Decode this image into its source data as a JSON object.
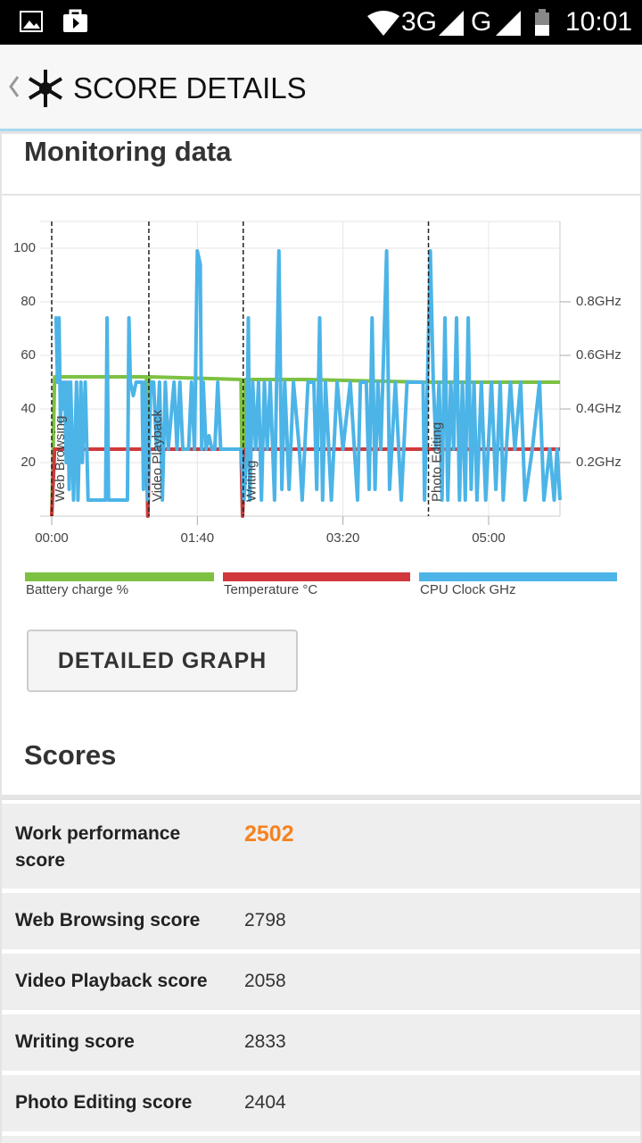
{
  "status_bar": {
    "network": "3G",
    "network2": "G",
    "time": "10:01"
  },
  "app_bar": {
    "title": "SCORE DETAILS"
  },
  "monitoring": {
    "heading": "Monitoring data",
    "button": "DETAILED GRAPH"
  },
  "chart_data": {
    "type": "line",
    "xlim": [
      0,
      349
    ],
    "xticks": [
      {
        "value": 0,
        "label": "00:00"
      },
      {
        "value": 100,
        "label": "01:40"
      },
      {
        "value": 200,
        "label": "03:20"
      },
      {
        "value": 300,
        "label": "05:00"
      }
    ],
    "ylim": [
      0,
      110
    ],
    "yticks": [
      20,
      40,
      60,
      80,
      100
    ],
    "y2lim": [
      0,
      1.1
    ],
    "y2ticks": [
      {
        "value": 0.2,
        "label": "0.2GHz"
      },
      {
        "value": 0.4,
        "label": "0.4GHz"
      },
      {
        "value": 0.6,
        "label": "0.6GHz"
      },
      {
        "value": 0.8,
        "label": "0.8GHz"
      }
    ],
    "grid": true,
    "annotations": [
      {
        "x": 0,
        "label": "Web Browsing"
      },
      {
        "x": 66.7,
        "label": "Video Playback"
      },
      {
        "x": 131.5,
        "label": "Writing"
      },
      {
        "x": 258.7,
        "label": "Photo Editing"
      }
    ],
    "series": [
      {
        "name": "Battery charge %",
        "color": "#7dc142",
        "axis": "y",
        "x": [
          0,
          2,
          65,
          66,
          67,
          130,
          131,
          133,
          175,
          258,
          349
        ],
        "values": [
          0,
          52,
          52,
          0,
          52,
          51,
          0,
          51,
          51,
          50,
          50
        ]
      },
      {
        "name": "Temperature °C",
        "color": "#d0393b",
        "axis": "y",
        "x": [
          0,
          2,
          65,
          66,
          67,
          130,
          131,
          133,
          349
        ],
        "values": [
          0,
          25,
          25,
          0,
          25,
          25,
          0,
          25,
          25
        ]
      },
      {
        "name": "CPU Clock GHz",
        "color": "#4cb4e7",
        "axis": "y2",
        "x": [
          2,
          3,
          4,
          5,
          6,
          7,
          8,
          9,
          10,
          11,
          12,
          13,
          15,
          17,
          18,
          20,
          21,
          23,
          25,
          37,
          38,
          39,
          52,
          53,
          54,
          56,
          58,
          62,
          63,
          64,
          66,
          68,
          70,
          72,
          74,
          76,
          78,
          80,
          84,
          86,
          88,
          90,
          94,
          96,
          98,
          100,
          102,
          103,
          104,
          106,
          108,
          110,
          112,
          114,
          116,
          130,
          132,
          134,
          135,
          136,
          138,
          140,
          142,
          144,
          146,
          148,
          150,
          153,
          156,
          158,
          160,
          163,
          166,
          170,
          172,
          176,
          180,
          182,
          184,
          186,
          188,
          192,
          196,
          200,
          205,
          210,
          212,
          216,
          218,
          220,
          222,
          224,
          226,
          230,
          232,
          236,
          240,
          244,
          255,
          256,
          258,
          260,
          262,
          264,
          266,
          268,
          270,
          272,
          274,
          276,
          278,
          280,
          282,
          284,
          286,
          288,
          290,
          292,
          295,
          298,
          302,
          305,
          308,
          310,
          315,
          318,
          322,
          325,
          330,
          335,
          338,
          342,
          345,
          347,
          349
        ],
        "values": [
          0.74,
          0.74,
          0.5,
          0.74,
          0.35,
          0.5,
          0.4,
          0.5,
          0.2,
          0.5,
          0.1,
          0.5,
          0.06,
          0.5,
          0.06,
          0.5,
          0.2,
          0.5,
          0.06,
          0.06,
          0.74,
          0.06,
          0.06,
          0.74,
          0.5,
          0.45,
          0.5,
          0.5,
          0.1,
          0.5,
          0.06,
          0.5,
          0.5,
          0.25,
          0.5,
          0.06,
          0.5,
          0.25,
          0.5,
          0.25,
          0.5,
          0.25,
          0.25,
          0.5,
          0.25,
          0.99,
          0.94,
          0.25,
          0.5,
          0.25,
          0.3,
          0.25,
          0.25,
          0.5,
          0.25,
          0.25,
          0.06,
          0.25,
          0.74,
          0.06,
          0.5,
          0.25,
          0.5,
          0.06,
          0.5,
          0.25,
          0.5,
          0.06,
          0.99,
          0.1,
          0.5,
          0.1,
          0.5,
          0.25,
          0.06,
          0.5,
          0.5,
          0.1,
          0.74,
          0.06,
          0.5,
          0.06,
          0.5,
          0.25,
          0.5,
          0.06,
          0.5,
          0.5,
          0.1,
          0.74,
          0.1,
          0.5,
          0.25,
          0.99,
          0.1,
          0.5,
          0.06,
          0.5,
          0.5,
          0.06,
          0.5,
          0.99,
          0.5,
          0.25,
          0.5,
          0.06,
          0.74,
          0.06,
          0.5,
          0.25,
          0.74,
          0.06,
          0.5,
          0.06,
          0.74,
          0.1,
          0.5,
          0.06,
          0.5,
          0.06,
          0.5,
          0.1,
          0.5,
          0.06,
          0.5,
          0.25,
          0.5,
          0.06,
          0.25,
          0.5,
          0.06,
          0.25,
          0.06,
          0.25,
          0.06
        ]
      }
    ]
  },
  "scores": {
    "heading": "Scores",
    "rows": [
      {
        "label": "Work performance score",
        "value": "2502"
      },
      {
        "label": "Web Browsing score",
        "value": "2798"
      },
      {
        "label": "Video Playback score",
        "value": "2058"
      },
      {
        "label": "Writing score",
        "value": "2833"
      },
      {
        "label": "Photo Editing score",
        "value": "2404"
      }
    ]
  }
}
